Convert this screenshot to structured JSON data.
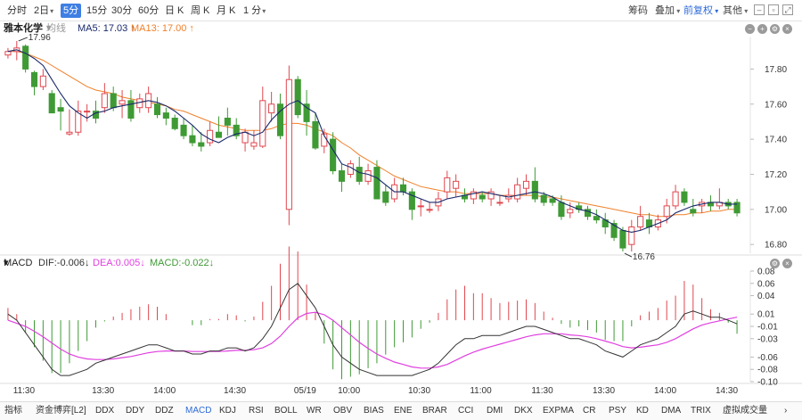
{
  "toolbar": {
    "periods": [
      {
        "label": "分时",
        "caret": false
      },
      {
        "label": "2日",
        "caret": true
      },
      {
        "label": "5分",
        "caret": false,
        "active": true
      },
      {
        "label": "15分",
        "caret": false
      },
      {
        "label": "30分",
        "caret": false
      },
      {
        "label": "60分",
        "caret": false
      },
      {
        "label": "日 K",
        "caret": false
      },
      {
        "label": "周 K",
        "caret": false
      },
      {
        "label": "月 K",
        "caret": false
      },
      {
        "label": "1 分",
        "caret": true
      }
    ],
    "right_tools": [
      "筹码",
      "叠加",
      "前复权",
      "其他"
    ],
    "active_tool": "前复权"
  },
  "legend": {
    "stock": "雅本化学",
    "junxian": "均线",
    "ma5": "MA5: 17.03 ↑",
    "ma13": "MA13: 17.00 ↑"
  },
  "macd_legend": {
    "name": "MACD",
    "dif": "DIF:-0.006↓",
    "dea": "DEA:0.005↓",
    "macd": "MACD:-0.022↓"
  },
  "colors": {
    "up": "#e0474f",
    "down": "#3f9a35",
    "ma5": "#1a2a6c",
    "ma13": "#f0802a",
    "dif": "#333333",
    "dea": "#e040e0",
    "accent": "#3f7fe3"
  },
  "chart_data": {
    "type": "candlestick",
    "price_axis": {
      "ticks": [
        "17.80",
        "17.60",
        "17.40",
        "17.20",
        "17.00",
        "16.80"
      ],
      "ylim": [
        16.78,
        17.96
      ]
    },
    "macd_axis": {
      "ticks": [
        "0.08",
        "0.06",
        "0.04",
        "0.01",
        "-0.01",
        "-0.03",
        "-0.06",
        "-0.08",
        "-0.10"
      ],
      "ylim": [
        -0.1,
        0.08
      ]
    },
    "time_ticks": [
      "11:30",
      "13:30",
      "14:00",
      "14:30",
      "05/19",
      "10:00",
      "10:30",
      "11:00",
      "11:30",
      "13:30",
      "14:00",
      "14:30"
    ],
    "annotations": {
      "high": "17.96",
      "low": "16.76"
    },
    "ma5_last": 17.03,
    "ma13_last": 17.0,
    "dif_last": -0.006,
    "dea_last": 0.005,
    "macd_last": -0.022,
    "candles": [
      [
        17.88,
        17.92,
        17.9,
        17.86
      ],
      [
        17.9,
        17.96,
        17.92,
        17.85
      ],
      [
        17.93,
        17.94,
        17.8,
        17.78
      ],
      [
        17.78,
        17.79,
        17.7,
        17.65
      ],
      [
        17.7,
        17.8,
        17.76,
        17.68
      ],
      [
        17.66,
        17.68,
        17.55,
        17.58
      ],
      [
        17.58,
        17.63,
        17.56,
        17.45
      ],
      [
        17.43,
        17.57,
        17.44,
        17.42
      ],
      [
        17.44,
        17.62,
        17.56,
        17.42
      ],
      [
        17.56,
        17.6,
        17.56,
        17.5
      ],
      [
        17.56,
        17.62,
        17.52,
        17.49
      ],
      [
        17.58,
        17.72,
        17.66,
        17.55
      ],
      [
        17.66,
        17.7,
        17.58,
        17.56
      ],
      [
        17.6,
        17.68,
        17.62,
        17.52
      ],
      [
        17.62,
        17.68,
        17.52,
        17.5
      ],
      [
        17.58,
        17.66,
        17.63,
        17.55
      ],
      [
        17.58,
        17.7,
        17.66,
        17.55
      ],
      [
        17.6,
        17.64,
        17.54,
        17.52
      ],
      [
        17.55,
        17.58,
        17.52,
        17.48
      ],
      [
        17.52,
        17.54,
        17.46,
        17.45
      ],
      [
        17.48,
        17.52,
        17.42,
        17.4
      ],
      [
        17.42,
        17.48,
        17.38,
        17.36
      ],
      [
        17.38,
        17.44,
        17.36,
        17.33
      ],
      [
        17.38,
        17.5,
        17.45,
        17.36
      ],
      [
        17.44,
        17.53,
        17.41,
        17.41
      ],
      [
        17.52,
        17.58,
        17.48,
        17.42
      ],
      [
        17.48,
        17.52,
        17.42,
        17.4
      ],
      [
        17.38,
        17.46,
        17.44,
        17.33
      ],
      [
        17.36,
        17.45,
        17.38,
        17.34
      ],
      [
        17.36,
        17.7,
        17.62,
        17.35
      ],
      [
        17.55,
        17.67,
        17.6,
        17.5
      ],
      [
        17.6,
        17.66,
        17.42,
        17.4
      ],
      [
        17.0,
        17.82,
        17.74,
        16.91
      ],
      [
        17.74,
        17.76,
        17.54,
        17.52
      ],
      [
        17.6,
        17.68,
        17.5,
        17.42
      ],
      [
        17.5,
        17.55,
        17.35,
        17.34
      ],
      [
        17.36,
        17.46,
        17.43,
        17.32
      ],
      [
        17.4,
        17.44,
        17.22,
        17.2
      ],
      [
        17.22,
        17.26,
        17.16,
        17.1
      ],
      [
        17.2,
        17.28,
        17.26,
        17.18
      ],
      [
        17.24,
        17.3,
        17.16,
        17.14
      ],
      [
        17.16,
        17.26,
        17.22,
        17.14
      ],
      [
        17.24,
        17.28,
        17.06,
        17.06
      ],
      [
        17.1,
        17.14,
        17.04,
        17.02
      ],
      [
        17.06,
        17.18,
        17.14,
        17.04
      ],
      [
        17.14,
        17.18,
        17.1,
        17.08
      ],
      [
        17.1,
        17.12,
        17.0,
        16.94
      ],
      [
        17.02,
        17.06,
        17.02,
        16.96
      ],
      [
        17.0,
        17.04,
        17.0,
        16.98
      ],
      [
        17.02,
        17.1,
        17.06,
        16.99
      ],
      [
        17.1,
        17.22,
        17.18,
        17.06
      ],
      [
        17.12,
        17.2,
        17.16,
        17.07
      ],
      [
        17.08,
        17.12,
        17.06,
        17.04
      ],
      [
        17.06,
        17.12,
        17.1,
        17.03
      ],
      [
        17.08,
        17.1,
        17.06,
        17.04
      ],
      [
        17.06,
        17.12,
        17.1,
        17.02
      ],
      [
        17.04,
        17.08,
        17.04,
        17.02
      ],
      [
        17.06,
        17.12,
        17.08,
        17.04
      ],
      [
        17.06,
        17.18,
        17.14,
        17.04
      ],
      [
        17.12,
        17.2,
        17.16,
        17.08
      ],
      [
        17.16,
        17.24,
        17.06,
        17.04
      ],
      [
        17.08,
        17.1,
        17.04,
        17.02
      ],
      [
        17.06,
        17.08,
        17.04,
        17.02
      ],
      [
        17.04,
        17.08,
        16.96,
        16.94
      ],
      [
        16.98,
        17.04,
        17.0,
        16.95
      ],
      [
        17.02,
        17.04,
        17.0,
        16.98
      ],
      [
        17.0,
        17.02,
        16.96,
        16.94
      ],
      [
        16.96,
        17.0,
        16.94,
        16.92
      ],
      [
        16.94,
        16.98,
        16.9,
        16.86
      ],
      [
        16.92,
        16.94,
        16.84,
        16.82
      ],
      [
        16.88,
        16.9,
        16.78,
        16.76
      ],
      [
        16.8,
        16.94,
        16.9,
        16.76
      ],
      [
        16.9,
        17.02,
        16.96,
        16.88
      ],
      [
        16.94,
        16.98,
        16.9,
        16.86
      ],
      [
        16.9,
        16.97,
        16.94,
        16.88
      ],
      [
        16.96,
        17.06,
        17.02,
        16.92
      ],
      [
        17.02,
        17.14,
        17.1,
        17.0
      ],
      [
        17.1,
        17.12,
        17.04,
        17.02
      ],
      [
        17.0,
        17.06,
        16.98,
        16.96
      ],
      [
        17.02,
        17.06,
        17.04,
        16.98
      ],
      [
        17.04,
        17.08,
        17.02,
        16.99
      ],
      [
        17.02,
        17.12,
        17.04,
        17.0
      ],
      [
        17.04,
        17.06,
        17.02,
        17.0
      ],
      [
        17.04,
        17.06,
        16.98,
        16.96
      ]
    ],
    "ma5": [
      17.9,
      17.91,
      17.89,
      17.86,
      17.82,
      17.74,
      17.66,
      17.59,
      17.55,
      17.52,
      17.55,
      17.56,
      17.58,
      17.59,
      17.6,
      17.61,
      17.62,
      17.61,
      17.59,
      17.56,
      17.52,
      17.48,
      17.43,
      17.4,
      17.38,
      17.41,
      17.43,
      17.44,
      17.42,
      17.44,
      17.51,
      17.56,
      17.6,
      17.62,
      17.58,
      17.55,
      17.42,
      17.34,
      17.26,
      17.24,
      17.21,
      17.2,
      17.18,
      17.14,
      17.1,
      17.1,
      17.08,
      17.06,
      17.04,
      17.04,
      17.06,
      17.07,
      17.08,
      17.09,
      17.1,
      17.09,
      17.08,
      17.07,
      17.08,
      17.09,
      17.1,
      17.09,
      17.07,
      17.04,
      17.02,
      17.0,
      16.99,
      16.97,
      16.94,
      16.91,
      16.88,
      16.87,
      16.88,
      16.9,
      16.92,
      16.94,
      16.98,
      17.0,
      17.02,
      17.03,
      17.04,
      17.04,
      17.03,
      17.03
    ],
    "ma13": [
      17.9,
      17.9,
      17.89,
      17.87,
      17.85,
      17.82,
      17.79,
      17.76,
      17.73,
      17.7,
      17.68,
      17.67,
      17.66,
      17.64,
      17.63,
      17.62,
      17.61,
      17.6,
      17.59,
      17.57,
      17.56,
      17.54,
      17.52,
      17.5,
      17.48,
      17.47,
      17.46,
      17.45,
      17.45,
      17.45,
      17.46,
      17.48,
      17.49,
      17.49,
      17.48,
      17.46,
      17.44,
      17.42,
      17.38,
      17.35,
      17.31,
      17.28,
      17.25,
      17.22,
      17.19,
      17.17,
      17.15,
      17.13,
      17.12,
      17.11,
      17.1,
      17.1,
      17.09,
      17.09,
      17.09,
      17.09,
      17.08,
      17.08,
      17.08,
      17.08,
      17.08,
      17.07,
      17.07,
      17.06,
      17.05,
      17.04,
      17.03,
      17.02,
      17.01,
      17.0,
      16.99,
      16.98,
      16.97,
      16.97,
      16.96,
      16.96,
      16.97,
      16.97,
      16.98,
      16.98,
      16.99,
      16.99,
      17.0,
      17.0
    ],
    "dif": [
      0.01,
      0.0,
      -0.02,
      -0.04,
      -0.06,
      -0.08,
      -0.09,
      -0.09,
      -0.085,
      -0.08,
      -0.07,
      -0.065,
      -0.06,
      -0.055,
      -0.05,
      -0.045,
      -0.04,
      -0.04,
      -0.045,
      -0.05,
      -0.05,
      -0.055,
      -0.055,
      -0.05,
      -0.05,
      -0.045,
      -0.045,
      -0.05,
      -0.045,
      -0.03,
      -0.01,
      0.02,
      0.05,
      0.06,
      0.04,
      0.02,
      -0.01,
      -0.04,
      -0.06,
      -0.07,
      -0.08,
      -0.085,
      -0.09,
      -0.09,
      -0.09,
      -0.09,
      -0.09,
      -0.085,
      -0.08,
      -0.07,
      -0.055,
      -0.04,
      -0.03,
      -0.03,
      -0.025,
      -0.025,
      -0.025,
      -0.02,
      -0.015,
      -0.01,
      -0.01,
      -0.015,
      -0.02,
      -0.025,
      -0.03,
      -0.03,
      -0.035,
      -0.04,
      -0.05,
      -0.055,
      -0.06,
      -0.05,
      -0.04,
      -0.035,
      -0.03,
      -0.02,
      -0.01,
      0.01,
      0.015,
      0.01,
      0.005,
      0.005,
      0.0,
      -0.006
    ],
    "dea": [
      0.0,
      -0.005,
      -0.01,
      -0.018,
      -0.027,
      -0.037,
      -0.047,
      -0.055,
      -0.06,
      -0.063,
      -0.064,
      -0.064,
      -0.063,
      -0.061,
      -0.059,
      -0.056,
      -0.053,
      -0.051,
      -0.05,
      -0.05,
      -0.05,
      -0.051,
      -0.051,
      -0.051,
      -0.051,
      -0.05,
      -0.049,
      -0.049,
      -0.048,
      -0.045,
      -0.038,
      -0.026,
      -0.01,
      0.004,
      0.011,
      0.013,
      0.009,
      0.0,
      -0.012,
      -0.024,
      -0.036,
      -0.046,
      -0.055,
      -0.062,
      -0.068,
      -0.072,
      -0.076,
      -0.078,
      -0.078,
      -0.076,
      -0.072,
      -0.065,
      -0.058,
      -0.052,
      -0.047,
      -0.043,
      -0.039,
      -0.035,
      -0.031,
      -0.027,
      -0.024,
      -0.022,
      -0.022,
      -0.022,
      -0.024,
      -0.025,
      -0.027,
      -0.03,
      -0.034,
      -0.038,
      -0.043,
      -0.045,
      -0.044,
      -0.042,
      -0.04,
      -0.036,
      -0.03,
      -0.022,
      -0.014,
      -0.008,
      -0.004,
      -0.001,
      0.002,
      0.005
    ]
  },
  "indicator_tabs": [
    "指标",
    "资金博弈[L2]",
    "DDX",
    "DDY",
    "DDZ",
    "MACD",
    "KDJ",
    "RSI",
    "BOLL",
    "WR",
    "OBV",
    "BIAS",
    "ENE",
    "BRAR",
    "CCI",
    "DMI",
    "DKX",
    "EXPMA",
    "CR",
    "PSY",
    "KD",
    "DMA",
    "TRIX",
    "虚拟成交量"
  ],
  "active_indicator": "MACD"
}
